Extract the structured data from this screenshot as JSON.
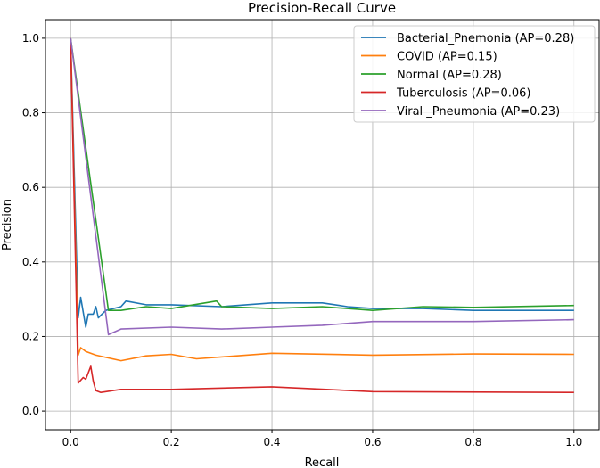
{
  "chart_data": {
    "type": "line",
    "title": "Precision-Recall Curve",
    "xlabel": "Recall",
    "ylabel": "Precision",
    "xlim": [
      -0.05,
      1.05
    ],
    "ylim": [
      -0.05,
      1.05
    ],
    "xticks": [
      "0.0",
      "0.2",
      "0.4",
      "0.6",
      "0.8",
      "1.0"
    ],
    "yticks": [
      "0.0",
      "0.2",
      "0.4",
      "0.6",
      "0.8",
      "1.0"
    ],
    "grid": true,
    "legend_position": "top-right",
    "series": [
      {
        "name": "Bacterial_Pnemonia (AP=0.28)",
        "color": "#1f77b4",
        "x": [
          0,
          0.015,
          0.02,
          0.03,
          0.035,
          0.045,
          0.05,
          0.055,
          0.07,
          0.1,
          0.11,
          0.15,
          0.2,
          0.3,
          0.4,
          0.5,
          0.55,
          0.6,
          0.7,
          0.8,
          1.0
        ],
        "y": [
          1.0,
          0.25,
          0.305,
          0.225,
          0.26,
          0.26,
          0.28,
          0.25,
          0.27,
          0.28,
          0.295,
          0.285,
          0.285,
          0.28,
          0.29,
          0.29,
          0.28,
          0.275,
          0.275,
          0.27,
          0.27
        ]
      },
      {
        "name": "COVID (AP=0.15)",
        "color": "#ff7f0e",
        "x": [
          0,
          0.015,
          0.02,
          0.03,
          0.05,
          0.1,
          0.15,
          0.2,
          0.25,
          0.4,
          0.6,
          0.8,
          1.0
        ],
        "y": [
          1.0,
          0.15,
          0.17,
          0.16,
          0.15,
          0.135,
          0.148,
          0.152,
          0.14,
          0.155,
          0.15,
          0.153,
          0.152
        ]
      },
      {
        "name": "Normal (AP=0.28)",
        "color": "#2ca02c",
        "x": [
          0,
          0.075,
          0.1,
          0.15,
          0.2,
          0.29,
          0.3,
          0.4,
          0.5,
          0.6,
          0.7,
          0.8,
          1.0
        ],
        "y": [
          1.0,
          0.27,
          0.27,
          0.28,
          0.275,
          0.295,
          0.28,
          0.275,
          0.28,
          0.27,
          0.28,
          0.278,
          0.283
        ]
      },
      {
        "name": "Tuberculosis (AP=0.06)",
        "color": "#d62728",
        "x": [
          0,
          0.015,
          0.025,
          0.03,
          0.04,
          0.045,
          0.05,
          0.06,
          0.1,
          0.2,
          0.4,
          0.6,
          1.0
        ],
        "y": [
          1.0,
          0.075,
          0.09,
          0.085,
          0.12,
          0.08,
          0.055,
          0.05,
          0.058,
          0.058,
          0.065,
          0.052,
          0.05
        ]
      },
      {
        "name": "Viral _Pneumonia (AP=0.23)",
        "color": "#9467bd",
        "x": [
          0,
          0.075,
          0.1,
          0.2,
          0.3,
          0.4,
          0.5,
          0.6,
          0.8,
          1.0
        ],
        "y": [
          1.0,
          0.205,
          0.22,
          0.225,
          0.22,
          0.225,
          0.23,
          0.24,
          0.24,
          0.245
        ]
      }
    ]
  }
}
